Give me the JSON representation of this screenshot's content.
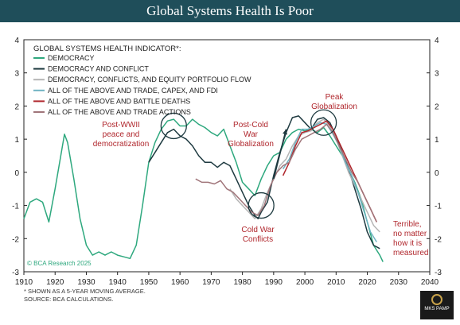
{
  "chart_data": {
    "type": "line",
    "title": "Global Systems Health Is Poor",
    "legend_title": "GLOBAL SYSTEMS HEALTH INDICATOR*:",
    "legend_placement": "top-left",
    "xlim": [
      1910,
      2040
    ],
    "ylim": [
      -3,
      4
    ],
    "x_ticks": [
      "1910",
      "1920",
      "1930",
      "1940",
      "1950",
      "1960",
      "1970",
      "1980",
      "1990",
      "2000",
      "2010",
      "2020",
      "2030",
      "2040"
    ],
    "y_ticks": [
      "4",
      "3",
      "2",
      "1",
      "0",
      "-1",
      "-2",
      "-3"
    ],
    "grid": false,
    "series": [
      {
        "name": "DEMOCRACY",
        "color": "#2ea87e",
        "points": [
          [
            1910,
            -1.4
          ],
          [
            1912,
            -0.9
          ],
          [
            1914,
            -0.8
          ],
          [
            1916,
            -0.9
          ],
          [
            1918,
            -1.5
          ],
          [
            1920,
            -0.5
          ],
          [
            1922,
            0.6
          ],
          [
            1923,
            1.15
          ],
          [
            1924,
            0.9
          ],
          [
            1926,
            -0.2
          ],
          [
            1928,
            -1.4
          ],
          [
            1930,
            -2.2
          ],
          [
            1932,
            -2.5
          ],
          [
            1934,
            -2.4
          ],
          [
            1936,
            -2.5
          ],
          [
            1938,
            -2.4
          ],
          [
            1940,
            -2.5
          ],
          [
            1942,
            -2.55
          ],
          [
            1944,
            -2.6
          ],
          [
            1946,
            -2.2
          ],
          [
            1948,
            -1.0
          ],
          [
            1950,
            0.3
          ],
          [
            1952,
            0.9
          ],
          [
            1954,
            1.3
          ],
          [
            1956,
            1.55
          ],
          [
            1958,
            1.6
          ],
          [
            1960,
            1.4
          ],
          [
            1962,
            1.4
          ],
          [
            1964,
            1.6
          ],
          [
            1966,
            1.45
          ],
          [
            1968,
            1.35
          ],
          [
            1970,
            1.2
          ],
          [
            1972,
            1.1
          ],
          [
            1974,
            1.3
          ],
          [
            1976,
            0.8
          ],
          [
            1978,
            0.3
          ],
          [
            1980,
            -0.3
          ],
          [
            1982,
            -0.5
          ],
          [
            1984,
            -0.7
          ],
          [
            1986,
            -0.2
          ],
          [
            1988,
            0.2
          ],
          [
            1990,
            0.5
          ],
          [
            1992,
            0.6
          ],
          [
            1994,
            1.0
          ],
          [
            1996,
            1.2
          ],
          [
            1998,
            1.3
          ],
          [
            2000,
            1.25
          ],
          [
            2002,
            1.3
          ],
          [
            2004,
            1.2
          ],
          [
            2006,
            1.35
          ],
          [
            2008,
            1.1
          ],
          [
            2010,
            0.8
          ],
          [
            2012,
            0.5
          ],
          [
            2014,
            0.1
          ],
          [
            2016,
            -0.3
          ],
          [
            2018,
            -0.8
          ],
          [
            2020,
            -1.5
          ],
          [
            2022,
            -2.2
          ],
          [
            2024,
            -2.5
          ],
          [
            2025,
            -2.7
          ]
        ]
      },
      {
        "name": "DEMOCRACY AND CONFLICT",
        "color": "#1e3a40",
        "points": [
          [
            1950,
            0.3
          ],
          [
            1952,
            0.6
          ],
          [
            1954,
            0.9
          ],
          [
            1956,
            1.2
          ],
          [
            1958,
            1.3
          ],
          [
            1960,
            1.1
          ],
          [
            1962,
            1.0
          ],
          [
            1964,
            0.8
          ],
          [
            1966,
            0.5
          ],
          [
            1968,
            0.3
          ],
          [
            1970,
            0.3
          ],
          [
            1972,
            0.15
          ],
          [
            1974,
            0.3
          ],
          [
            1976,
            0.2
          ],
          [
            1978,
            -0.2
          ],
          [
            1980,
            -0.6
          ],
          [
            1982,
            -1.0
          ],
          [
            1984,
            -1.3
          ],
          [
            1985,
            -1.4
          ],
          [
            1986,
            -1.2
          ],
          [
            1988,
            -0.9
          ],
          [
            1990,
            -0.1
          ],
          [
            1992,
            0.6
          ],
          [
            1994,
            1.2
          ],
          [
            1996,
            1.65
          ],
          [
            1998,
            1.7
          ],
          [
            2000,
            1.5
          ],
          [
            2002,
            1.3
          ],
          [
            2004,
            1.6
          ],
          [
            2006,
            1.65
          ],
          [
            2008,
            1.5
          ],
          [
            2010,
            1.1
          ],
          [
            2012,
            0.6
          ],
          [
            2014,
            0.1
          ],
          [
            2016,
            -0.5
          ],
          [
            2018,
            -1.1
          ],
          [
            2020,
            -1.8
          ],
          [
            2022,
            -2.2
          ],
          [
            2024,
            -2.3
          ]
        ]
      },
      {
        "name": "DEMOCRACY, CONFLICTS, AND EQUITY PORTFOLIO FLOW",
        "color": "#b5b5b5",
        "points": [
          [
            1976,
            -0.5
          ],
          [
            1978,
            -0.8
          ],
          [
            1980,
            -1.0
          ],
          [
            1982,
            -1.2
          ],
          [
            1984,
            -1.4
          ],
          [
            1986,
            -1.1
          ],
          [
            1988,
            -0.6
          ],
          [
            1990,
            -0.2
          ],
          [
            1992,
            0.2
          ],
          [
            1994,
            0.4
          ],
          [
            1996,
            0.8
          ],
          [
            1998,
            1.1
          ],
          [
            2000,
            1.2
          ],
          [
            2002,
            1.25
          ],
          [
            2004,
            1.5
          ],
          [
            2006,
            1.6
          ],
          [
            2008,
            1.4
          ],
          [
            2010,
            1.0
          ],
          [
            2012,
            0.5
          ],
          [
            2014,
            0.0
          ],
          [
            2016,
            -0.4
          ],
          [
            2018,
            -0.8
          ],
          [
            2020,
            -1.2
          ],
          [
            2022,
            -1.6
          ],
          [
            2024,
            -1.8
          ]
        ]
      },
      {
        "name": "ALL OF THE ABOVE AND TRADE, CAPEX, AND FDI",
        "color": "#6fb3c2",
        "points": [
          [
            1993,
            0.1
          ],
          [
            1995,
            0.4
          ],
          [
            1997,
            0.9
          ],
          [
            1999,
            1.3
          ],
          [
            2001,
            1.3
          ],
          [
            2003,
            1.4
          ],
          [
            2005,
            1.5
          ],
          [
            2007,
            1.45
          ],
          [
            2009,
            1.15
          ],
          [
            2011,
            0.8
          ],
          [
            2013,
            0.3
          ],
          [
            2015,
            -0.1
          ],
          [
            2017,
            -0.6
          ],
          [
            2019,
            -1.2
          ],
          [
            2021,
            -1.8
          ],
          [
            2023,
            -2.1
          ]
        ]
      },
      {
        "name": "ALL OF THE ABOVE AND BATTLE DEATHS",
        "color": "#b0272d",
        "points": [
          [
            1993,
            -0.1
          ],
          [
            1995,
            0.3
          ],
          [
            1997,
            0.8
          ],
          [
            1999,
            1.2
          ],
          [
            2001,
            1.25
          ],
          [
            2003,
            1.35
          ],
          [
            2005,
            1.45
          ],
          [
            2007,
            1.55
          ],
          [
            2009,
            1.3
          ],
          [
            2011,
            0.9
          ],
          [
            2013,
            0.5
          ],
          [
            2015,
            0.1
          ],
          [
            2017,
            -0.3
          ],
          [
            2019,
            -0.7
          ],
          [
            2021,
            -1.1
          ],
          [
            2023,
            -1.5
          ]
        ]
      },
      {
        "name": "ALL OF THE ABOVE AND TRADE ACTIONS",
        "color": "#a0757a",
        "points": [
          [
            1965,
            -0.2
          ],
          [
            1967,
            -0.3
          ],
          [
            1969,
            -0.3
          ],
          [
            1971,
            -0.35
          ],
          [
            1973,
            -0.25
          ],
          [
            1975,
            -0.5
          ],
          [
            1977,
            -0.6
          ],
          [
            1979,
            -0.8
          ],
          [
            1981,
            -1.0
          ],
          [
            1983,
            -1.2
          ],
          [
            1985,
            -1.3
          ],
          [
            1987,
            -1.0
          ],
          [
            1989,
            -0.4
          ],
          [
            1991,
            0.0
          ],
          [
            1993,
            0.2
          ],
          [
            1995,
            0.3
          ],
          [
            1997,
            0.7
          ],
          [
            1999,
            1.0
          ],
          [
            2001,
            1.1
          ],
          [
            2003,
            1.2
          ],
          [
            2005,
            1.3
          ],
          [
            2007,
            1.45
          ],
          [
            2009,
            1.2
          ],
          [
            2011,
            0.8
          ],
          [
            2013,
            0.4
          ],
          [
            2015,
            0.0
          ],
          [
            2017,
            -0.3
          ],
          [
            2019,
            -0.7
          ],
          [
            2021,
            -1.1
          ],
          [
            2023,
            -1.5
          ]
        ]
      }
    ],
    "annotations": [
      {
        "text": "Post-WWII peace and democratization",
        "lines": [
          "Post-WWII",
          "peace and",
          "democratization"
        ],
        "color": "#b0272d"
      },
      {
        "text": "Post-Cold War Globalization",
        "lines": [
          "Post-Cold",
          "War",
          "Globalization"
        ],
        "color": "#b0272d"
      },
      {
        "text": "Cold War Conflicts",
        "lines": [
          "Cold War",
          "Conflicts"
        ],
        "color": "#b0272d"
      },
      {
        "text": "Peak Globalization",
        "lines": [
          "Peak",
          "Globalization"
        ],
        "color": "#b0272d"
      },
      {
        "text": "Terrible, no matter how it is measured",
        "lines": [
          "Terrible,",
          "no matter",
          "how it is",
          "measured"
        ],
        "color": "#b0272d"
      }
    ],
    "highlight_circles": [
      {
        "label": "post-wwii",
        "center": [
          1958,
          1.4
        ]
      },
      {
        "label": "cold-war",
        "center": [
          1986,
          -1.0
        ]
      },
      {
        "label": "peak-globalization",
        "center": [
          2006,
          1.5
        ]
      }
    ],
    "arrow": {
      "from": [
        1990,
        -0.2
      ],
      "to": [
        1994,
        1.3
      ]
    },
    "watermark": "© BCA Research 2025"
  },
  "footnote_1": "* SHOWN AS A 5-YEAR MOVING AVERAGE.",
  "footnote_2": "SOURCE: BCA CALCULATIONS.",
  "logo_text": "MKS PAMP"
}
